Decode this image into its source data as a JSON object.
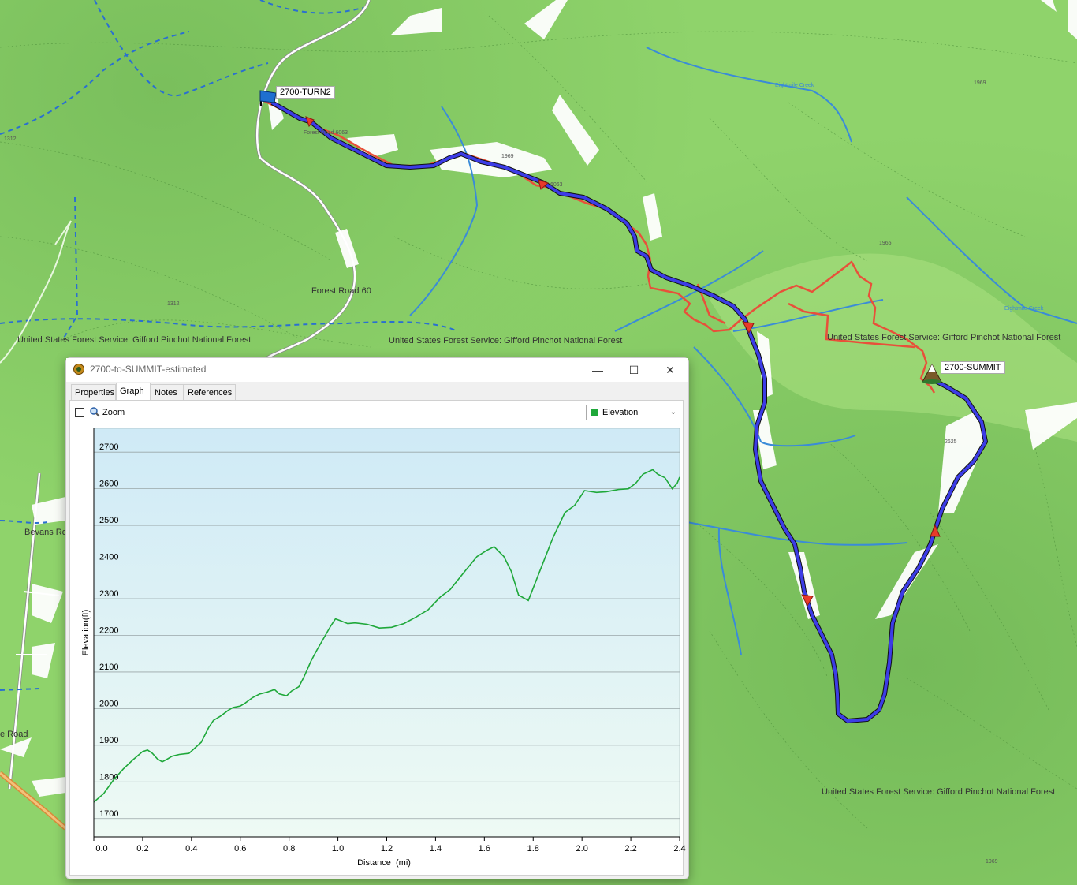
{
  "map": {
    "waypoints": [
      {
        "name": "2700-TURN2",
        "icon": "blue-flag-icon"
      },
      {
        "name": "2700-SUMMIT",
        "icon": "summit-icon"
      }
    ],
    "labels": {
      "forest_road_60": "Forest Road 60",
      "gp_forest_1": "United States Forest Service: Gifford Pinchot National Forest",
      "gp_forest_2": "United States Forest Service: Gifford Pinchot National Forest",
      "gp_forest_3": "United States Forest Service: Gifford Pinchot National Forest",
      "gp_forest_4": "United States Forest Service: Gifford Pinchot National Forest",
      "bevans_road": "Bevans Ro",
      "road_partial": "e Road",
      "fr6063_a": "Forest Road 6063",
      "fr6063_b": "6063",
      "num_1312_a": "1312",
      "num_1312_b": "1312",
      "num_1969_a": "1969",
      "num_1969_b": "1969",
      "num_1969_c": "1969",
      "num_1965": "1965",
      "num_2625": "2625",
      "creek_a": "Eightmile Creek",
      "creek_b": "Eightmile Creek"
    },
    "colors": {
      "background": "#8fd36b",
      "track": "#3c3ce6",
      "recorded_track": "#e8503a",
      "stream": "#3a8bd8",
      "road": "#ffffff"
    }
  },
  "window": {
    "title": "2700-to-SUMMIT-estimated",
    "controls": {
      "minimize": "—",
      "maximize": "☐",
      "close": "✕"
    },
    "tabs": [
      {
        "label": "Properties",
        "active": false
      },
      {
        "label": "Graph",
        "active": true
      },
      {
        "label": "Notes",
        "active": false
      },
      {
        "label": "References",
        "active": false
      }
    ],
    "zoom_label": "Zoom",
    "zoom_checked": false,
    "series_selected": "Elevation",
    "series_color": "#1fa83a"
  },
  "chart_data": {
    "type": "area",
    "xlabel": "Distance  (mi)",
    "ylabel": "Elevation(ft)",
    "xlim": [
      0.0,
      2.4
    ],
    "ylim": [
      1650,
      2765
    ],
    "x_ticks": [
      "0.0",
      "0.2",
      "0.4",
      "0.6",
      "0.8",
      "1.0",
      "1.2",
      "1.4",
      "1.6",
      "1.8",
      "2.0",
      "2.2",
      "2.4"
    ],
    "y_ticks": [
      "1700",
      "1800",
      "1900",
      "2000",
      "2100",
      "2200",
      "2300",
      "2400",
      "2500",
      "2600",
      "2700"
    ],
    "grid": true,
    "series": [
      {
        "color": "#1fa83a",
        "x": [
          0.0,
          0.04,
          0.08,
          0.12,
          0.16,
          0.2,
          0.22,
          0.24,
          0.26,
          0.28,
          0.3,
          0.32,
          0.35,
          0.39,
          0.41,
          0.44,
          0.47,
          0.49,
          0.52,
          0.55,
          0.57,
          0.6,
          0.62,
          0.65,
          0.68,
          0.71,
          0.74,
          0.76,
          0.79,
          0.81,
          0.84,
          0.86,
          0.89,
          0.91,
          0.94,
          0.97,
          0.99,
          1.01,
          1.04,
          1.07,
          1.12,
          1.17,
          1.22,
          1.27,
          1.32,
          1.37,
          1.42,
          1.46,
          1.52,
          1.57,
          1.61,
          1.64,
          1.68,
          1.71,
          1.74,
          1.78,
          1.83,
          1.88,
          1.93,
          1.97,
          2.01,
          2.06,
          2.1,
          2.15,
          2.19,
          2.22,
          2.25,
          2.29,
          2.31,
          2.34,
          2.37,
          2.39,
          2.42
        ],
        "values": [
          1745,
          1768,
          1805,
          1835,
          1860,
          1883,
          1887,
          1878,
          1863,
          1855,
          1862,
          1870,
          1875,
          1878,
          1890,
          1908,
          1948,
          1968,
          1980,
          1995,
          2003,
          2007,
          2015,
          2030,
          2040,
          2045,
          2052,
          2040,
          2035,
          2048,
          2060,
          2085,
          2130,
          2155,
          2190,
          2225,
          2245,
          2240,
          2232,
          2234,
          2230,
          2220,
          2222,
          2232,
          2250,
          2270,
          2305,
          2325,
          2375,
          2415,
          2432,
          2442,
          2415,
          2375,
          2310,
          2295,
          2380,
          2465,
          2535,
          2555,
          2595,
          2590,
          2592,
          2598,
          2600,
          2615,
          2640,
          2652,
          2640,
          2630,
          2600,
          2615,
          2632
        ]
      }
    ]
  }
}
